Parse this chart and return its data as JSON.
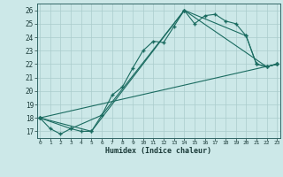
{
  "title": "",
  "xlabel": "Humidex (Indice chaleur)",
  "bg_color": "#cce8e8",
  "grid_color": "#b0d0d0",
  "line_color": "#1a6b60",
  "series": [
    {
      "x": [
        0,
        1,
        2,
        3,
        4,
        5,
        6,
        7,
        8,
        9,
        10,
        11,
        12,
        13,
        14,
        15,
        16,
        17,
        18,
        19,
        20,
        21,
        22,
        23
      ],
      "y": [
        18,
        17.2,
        16.8,
        17.2,
        17.0,
        17.0,
        18.2,
        19.7,
        20.3,
        21.7,
        23.0,
        23.7,
        23.6,
        24.8,
        26.0,
        25.0,
        25.6,
        25.7,
        25.2,
        25.0,
        24.1,
        22.0,
        21.8,
        22.0
      ]
    },
    {
      "x": [
        0,
        3,
        6,
        14,
        20,
        21,
        22,
        23
      ],
      "y": [
        18,
        17.2,
        18.2,
        26.0,
        24.1,
        22.0,
        21.8,
        22.0
      ]
    },
    {
      "x": [
        0,
        5,
        14,
        22,
        23
      ],
      "y": [
        18,
        17.0,
        26.0,
        21.8,
        22.0
      ]
    },
    {
      "x": [
        0,
        23
      ],
      "y": [
        18,
        22.0
      ]
    }
  ],
  "xlim": [
    0,
    23
  ],
  "ylim": [
    16.5,
    26.5
  ],
  "yticks": [
    17,
    18,
    19,
    20,
    21,
    22,
    23,
    24,
    25,
    26
  ],
  "xticks": [
    0,
    1,
    2,
    3,
    4,
    5,
    6,
    7,
    8,
    9,
    10,
    11,
    12,
    13,
    14,
    15,
    16,
    17,
    18,
    19,
    20,
    21,
    22,
    23
  ]
}
